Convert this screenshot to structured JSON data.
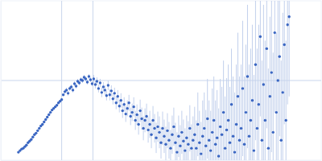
{
  "chart_data": {
    "type": "scatter",
    "color": "#3a66c2",
    "marker": "circle",
    "grid": true,
    "tick_labels": false,
    "xlim": [
      0,
      400
    ],
    "ylim": [
      0,
      200
    ],
    "xticks": [
      76,
      115
    ],
    "yticks": [
      100
    ],
    "x": [
      22,
      24,
      26,
      28,
      30,
      32,
      34,
      36,
      38,
      40,
      42,
      44,
      46,
      48,
      50,
      52,
      54,
      56,
      58,
      60,
      62,
      64,
      66,
      68,
      70,
      72,
      74,
      76,
      78,
      80,
      82,
      84,
      86,
      88,
      90,
      92,
      94,
      96,
      98,
      100,
      102,
      104,
      106,
      108,
      110,
      112,
      114,
      116,
      118,
      120,
      122,
      124,
      126,
      128,
      130,
      132,
      134,
      136,
      138,
      140,
      142,
      144,
      146,
      148,
      150,
      152,
      154,
      156,
      158,
      160,
      162,
      164,
      166,
      168,
      170,
      172,
      174,
      176,
      178,
      180,
      182,
      184,
      186,
      188,
      190,
      192,
      194,
      196,
      198,
      200,
      202,
      204,
      206,
      208,
      210,
      212,
      214,
      216,
      218,
      220,
      222,
      224,
      226,
      228,
      230,
      232,
      234,
      236,
      238,
      240,
      242,
      244,
      246,
      248,
      250,
      252,
      254,
      256,
      258,
      260,
      262,
      264,
      266,
      268,
      270,
      272,
      274,
      276,
      278,
      280,
      282,
      284,
      286,
      288,
      290,
      292,
      294,
      296,
      298,
      300,
      302,
      304,
      306,
      308,
      310,
      312,
      314,
      316,
      318,
      320,
      322,
      324,
      326,
      328,
      330,
      332,
      334,
      336,
      338,
      340,
      342,
      344,
      346,
      348,
      350,
      352,
      354,
      356,
      358,
      360
    ],
    "values": [
      10,
      12,
      14,
      15,
      17,
      19,
      22,
      24,
      26,
      29,
      32,
      34,
      37,
      40,
      43,
      45,
      48,
      51,
      54,
      57,
      60,
      63,
      65,
      67,
      69,
      72,
      74,
      76,
      82,
      86,
      88,
      84,
      90,
      92,
      88,
      96,
      93,
      99,
      97,
      101,
      100,
      104,
      102,
      98,
      105,
      101,
      96,
      102,
      95,
      99,
      90,
      97,
      85,
      92,
      88,
      81,
      94,
      82,
      87,
      77,
      84,
      72,
      80,
      68,
      75,
      62,
      70,
      58,
      65,
      72,
      55,
      60,
      67,
      50,
      57,
      45,
      62,
      52,
      40,
      50,
      55,
      38,
      45,
      32,
      50,
      40,
      28,
      42,
      35,
      22,
      40,
      30,
      20,
      37,
      25,
      15,
      32,
      42,
      22,
      10,
      30,
      18,
      35,
      24,
      12,
      28,
      20,
      40,
      15,
      25,
      32,
      15,
      45,
      22,
      8,
      30,
      40,
      18,
      52,
      25,
      12,
      35,
      50,
      20,
      28,
      5,
      42,
      32,
      60,
      15,
      38,
      50,
      22,
      70,
      30,
      10,
      45,
      80,
      25,
      40,
      90,
      20,
      60,
      105,
      30,
      50,
      75,
      12,
      120,
      40,
      70,
      155,
      25,
      95,
      50,
      140,
      15,
      80,
      110,
      35,
      160,
      60,
      100,
      130,
      25,
      85,
      145,
      50,
      170,
      180
    ],
    "errors": [
      1,
      1,
      1,
      1,
      1,
      1,
      1,
      1,
      1,
      1,
      1,
      1,
      1,
      1,
      1,
      1,
      1,
      1,
      1,
      1,
      1,
      1,
      1,
      1,
      1,
      1,
      1,
      1,
      1,
      3,
      3,
      3,
      3,
      3,
      3,
      3,
      3,
      3,
      3,
      3,
      3,
      3,
      3,
      3,
      3,
      3,
      3,
      5,
      5,
      5,
      5,
      5,
      6,
      6,
      6,
      6,
      6,
      7,
      7,
      7,
      7,
      8,
      8,
      8,
      9,
      9,
      9,
      10,
      10,
      10,
      11,
      11,
      12,
      12,
      13,
      13,
      14,
      14,
      15,
      15,
      16,
      16,
      17,
      17,
      18,
      18,
      19,
      19,
      20,
      20,
      21,
      21,
      22,
      22,
      23,
      23,
      24,
      24,
      25,
      25,
      26,
      26,
      27,
      27,
      28,
      28,
      29,
      29,
      30,
      30,
      35,
      35,
      40,
      40,
      40,
      45,
      45,
      45,
      50,
      50,
      50,
      55,
      55,
      55,
      60,
      60,
      60,
      60,
      65,
      65,
      65,
      70,
      70,
      70,
      75,
      75,
      75,
      80,
      80,
      80,
      85,
      85,
      85,
      90,
      90,
      90,
      95,
      95,
      95,
      100,
      100,
      100,
      100,
      100,
      100,
      100,
      100,
      100,
      100,
      100,
      100,
      100,
      100,
      100,
      100,
      100,
      100,
      100,
      100,
      100
    ]
  }
}
